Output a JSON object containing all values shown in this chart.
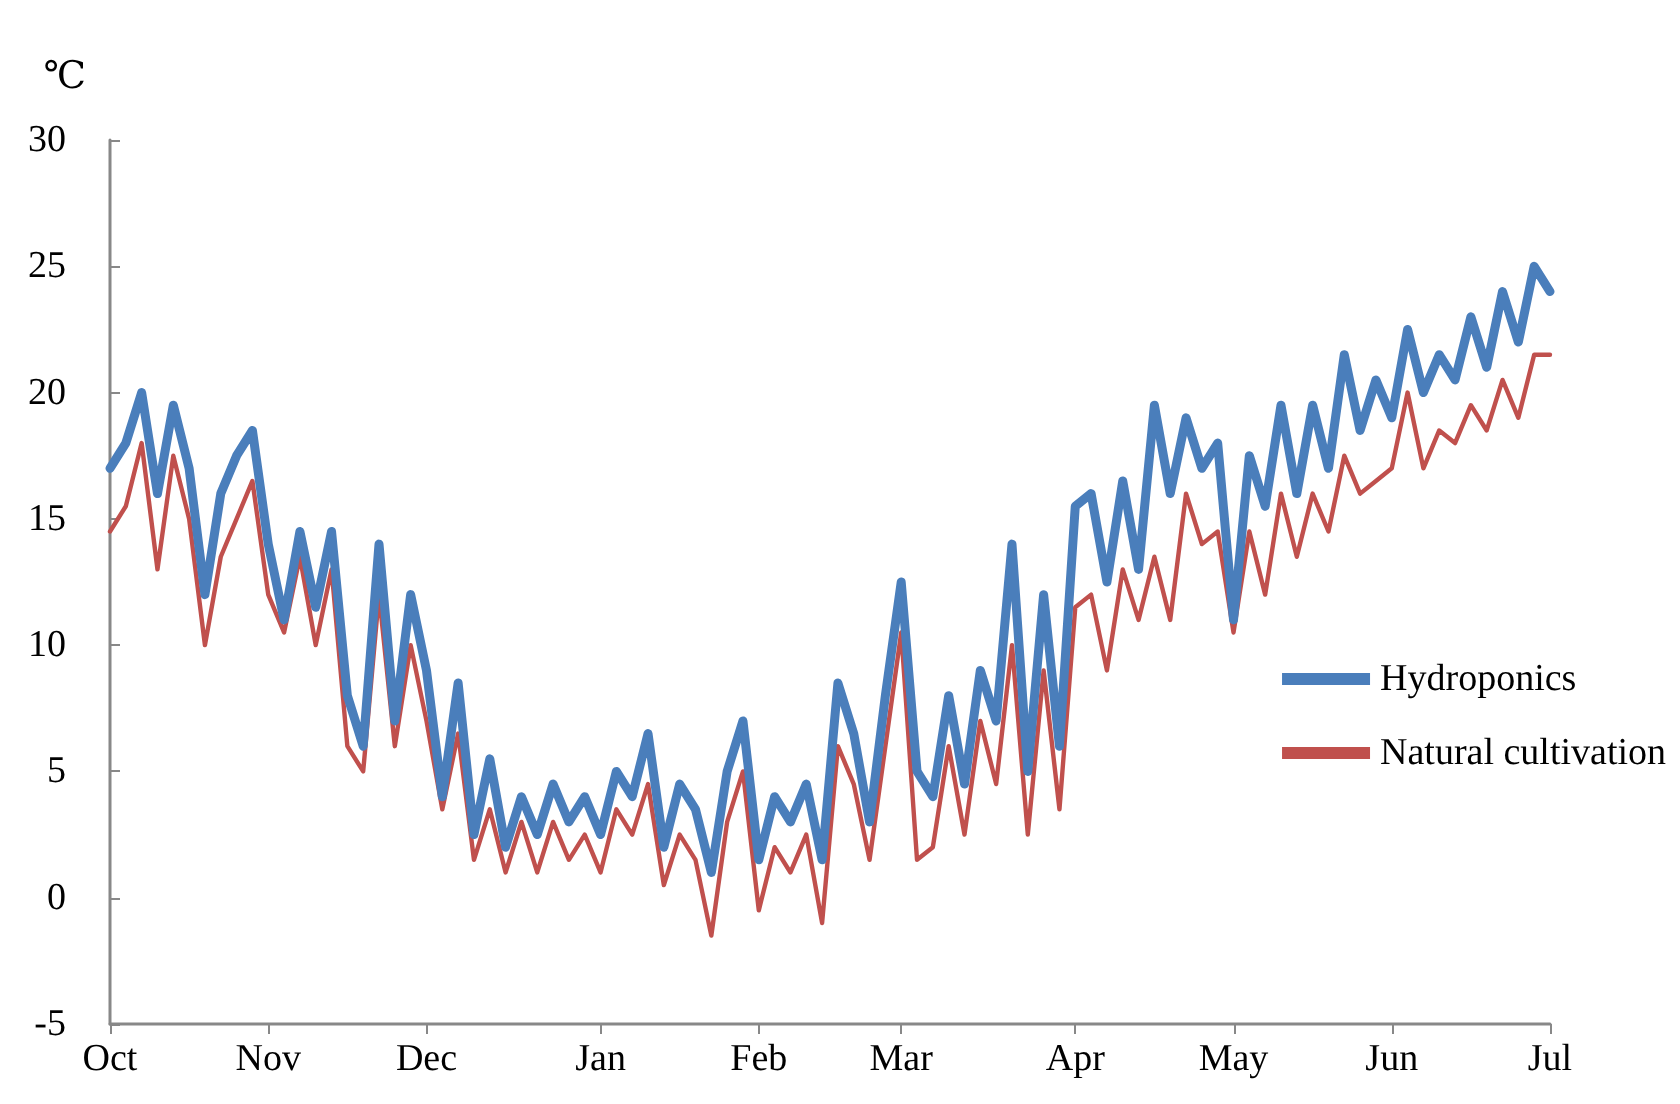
{
  "chart_data": {
    "type": "line",
    "ylabel": "℃",
    "categories": [
      "Oct",
      null,
      null,
      null,
      null,
      null,
      null,
      null,
      null,
      null,
      "Nov",
      null,
      null,
      null,
      null,
      null,
      null,
      null,
      null,
      null,
      "Dec",
      null,
      null,
      null,
      null,
      null,
      null,
      null,
      null,
      null,
      null,
      "Jan",
      null,
      null,
      null,
      null,
      null,
      null,
      null,
      null,
      null,
      "Feb",
      null,
      null,
      null,
      null,
      null,
      null,
      null,
      null,
      "Mar",
      null,
      null,
      null,
      null,
      null,
      null,
      null,
      null,
      null,
      null,
      "Apr",
      null,
      null,
      null,
      null,
      null,
      null,
      null,
      null,
      null,
      "May",
      null,
      null,
      null,
      null,
      null,
      null,
      null,
      null,
      null,
      "Jun",
      null,
      null,
      null,
      null,
      null,
      null,
      null,
      null,
      null,
      "Jul"
    ],
    "series": [
      {
        "name": "Hydroponics",
        "color": "#4a7ebb",
        "values": [
          17,
          18,
          20,
          16,
          19.5,
          17,
          12,
          16,
          17.5,
          18.5,
          14,
          11,
          14.5,
          11.5,
          14.5,
          8,
          6,
          14,
          7,
          12,
          9,
          4,
          8.5,
          2.5,
          5.5,
          2,
          4,
          2.5,
          4.5,
          3,
          4,
          2.5,
          5,
          4,
          6.5,
          2,
          4.5,
          3.5,
          1,
          5,
          7,
          1.5,
          4,
          3,
          4.5,
          1.5,
          8.5,
          6.5,
          3,
          8,
          12.5,
          5,
          4,
          8,
          4.5,
          9,
          7,
          14,
          5,
          12,
          6,
          15.5,
          16,
          12.5,
          16.5,
          13,
          19.5,
          16,
          19,
          17,
          18,
          11,
          17.5,
          15.5,
          19.5,
          16,
          19.5,
          17,
          21.5,
          18.5,
          20.5,
          19,
          22.5,
          20,
          21.5,
          20.5,
          23,
          21,
          24,
          22,
          25,
          24
        ]
      },
      {
        "name": "Natural cultivation",
        "color": "#c0504d",
        "values": [
          14.5,
          15.5,
          18,
          13,
          17.5,
          15,
          10,
          13.5,
          15,
          16.5,
          12,
          10.5,
          13.5,
          10,
          13,
          6,
          5,
          12,
          6,
          10,
          7,
          3.5,
          6.5,
          1.5,
          3.5,
          1,
          3,
          1,
          3,
          1.5,
          2.5,
          1,
          3.5,
          2.5,
          4.5,
          0.5,
          2.5,
          1.5,
          -1.5,
          3,
          5,
          -0.5,
          2,
          1,
          2.5,
          -1,
          6,
          4.5,
          1.5,
          6,
          10.5,
          1.5,
          2,
          6,
          2.5,
          7,
          4.5,
          10,
          2.5,
          9,
          3.5,
          11.5,
          12,
          9,
          13,
          11,
          13.5,
          11,
          16,
          14,
          14.5,
          10.5,
          14.5,
          12,
          16,
          13.5,
          16,
          14.5,
          17.5,
          16,
          16.5,
          17,
          20,
          17,
          18.5,
          18,
          19.5,
          18.5,
          20.5,
          19,
          21.5,
          21.5
        ]
      }
    ],
    "ylim": [
      -5,
      30
    ],
    "yticks": [
      -5,
      0,
      5,
      10,
      15,
      20,
      25,
      30
    ],
    "grid": false,
    "legend": "right",
    "marker": "none",
    "line_style": "solid"
  }
}
